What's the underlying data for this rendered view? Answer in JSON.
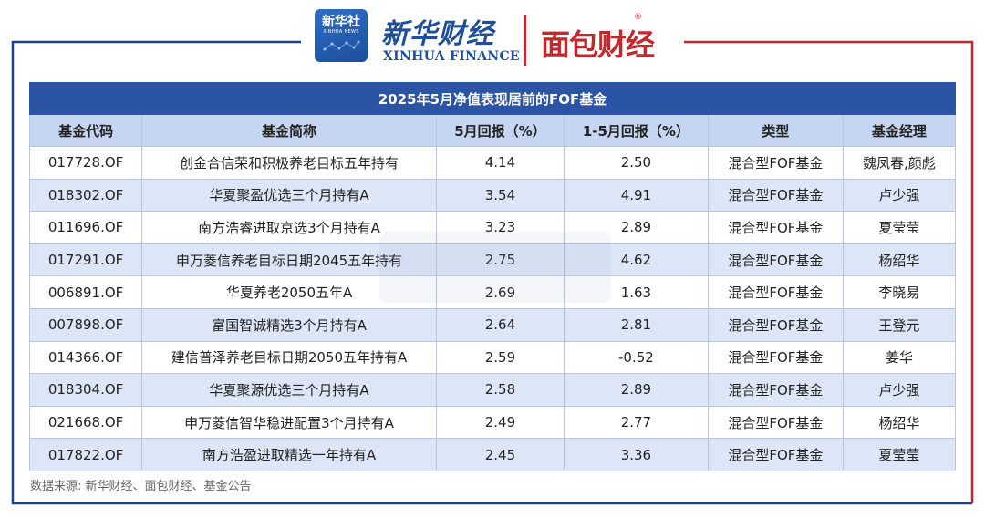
{
  "brand": {
    "xinhua_badge_cn": "新华社",
    "xinhua_badge_en": "XINHUA NEWS",
    "xinhua_finance_cn": "新华财经",
    "xinhua_finance_en": "XINHUA FINANCE",
    "mianbao_cn": "面包财经",
    "registered_mark": "®"
  },
  "colors": {
    "frame_blue": "#1f3f86",
    "frame_red": "#c7262c",
    "title_bar": "#2c54a4",
    "header_bg": "#c6d5f1",
    "alt_row_bg": "#dde6f7"
  },
  "table": {
    "title": "2025年5月净值表现居前的FOF基金",
    "columns": [
      "基金代码",
      "基金简称",
      "5月回报（%）",
      "1-5月回报（%）",
      "类型",
      "基金经理"
    ],
    "rows": [
      [
        "017728.OF",
        "创金合信荣和积极养老目标五年持有",
        "4.14",
        "2.50",
        "混合型FOF基金",
        "魏凤春,颜彪"
      ],
      [
        "018302.OF",
        "华夏聚盈优选三个月持有A",
        "3.54",
        "4.91",
        "混合型FOF基金",
        "卢少强"
      ],
      [
        "011696.OF",
        "南方浩睿进取京选3个月持有A",
        "3.23",
        "2.89",
        "混合型FOF基金",
        "夏莹莹"
      ],
      [
        "017291.OF",
        "申万菱信养老目标日期2045五年持有",
        "2.75",
        "4.62",
        "混合型FOF基金",
        "杨绍华"
      ],
      [
        "006891.OF",
        "华夏养老2050五年A",
        "2.69",
        "1.63",
        "混合型FOF基金",
        "李晓易"
      ],
      [
        "007898.OF",
        "富国智诚精选3个月持有A",
        "2.64",
        "2.81",
        "混合型FOF基金",
        "王登元"
      ],
      [
        "014366.OF",
        "建信普泽养老目标日期2050五年持有A",
        "2.59",
        "-0.52",
        "混合型FOF基金",
        "姜华"
      ],
      [
        "018304.OF",
        "华夏聚源优选三个月持有A",
        "2.58",
        "2.89",
        "混合型FOF基金",
        "卢少强"
      ],
      [
        "021668.OF",
        "申万菱信智华稳进配置3个月持有A",
        "2.49",
        "2.77",
        "混合型FOF基金",
        "杨绍华"
      ],
      [
        "017822.OF",
        "南方浩盈进取精选一年持有A",
        "2.45",
        "3.36",
        "混合型FOF基金",
        "夏莹莹"
      ]
    ]
  },
  "source_note": "数据来源: 新华财经、面包财经、基金公告"
}
